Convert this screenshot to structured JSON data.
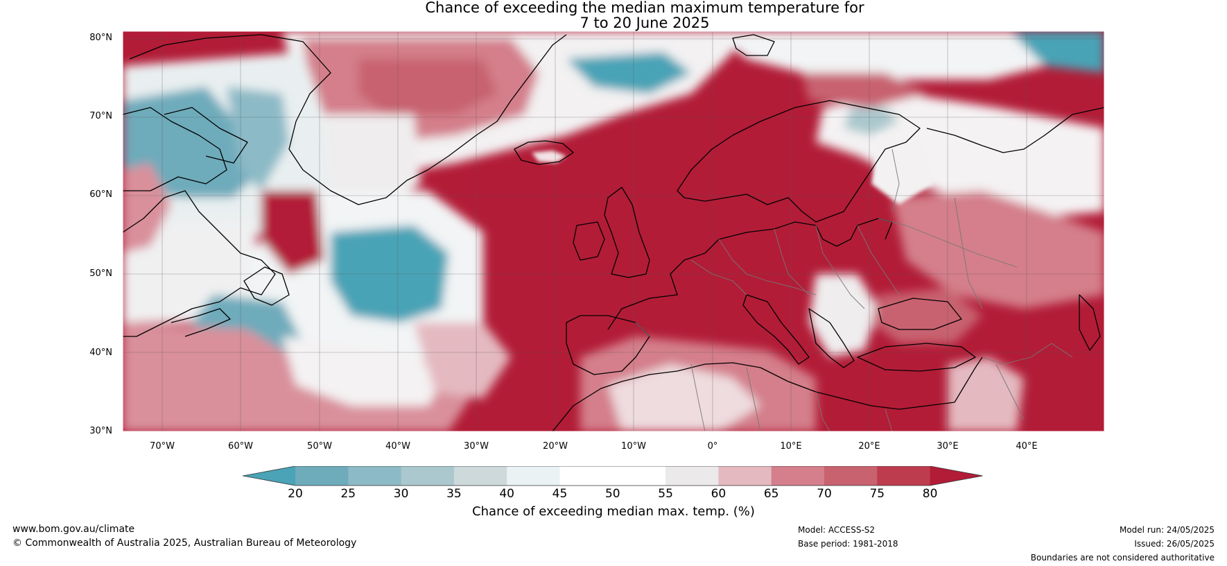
{
  "title": {
    "line1": "Chance of exceeding the median maximum temperature for",
    "line2": "7 to 20 June 2025"
  },
  "map": {
    "extent_lon": [
      -75,
      50
    ],
    "extent_lat": [
      30,
      81
    ],
    "lat_labels": [
      "80°N",
      "70°N",
      "60°N",
      "50°N",
      "40°N",
      "30°N"
    ],
    "lon_labels": [
      "70°W",
      "60°W",
      "50°W",
      "40°W",
      "30°W",
      "20°W",
      "10°W",
      "0°",
      "10°E",
      "20°E",
      "30°E",
      "40°E"
    ],
    "gridlines": true,
    "coastlines": true,
    "country_borders": true
  },
  "colorbar": {
    "ticks": [
      "20",
      "25",
      "30",
      "35",
      "40",
      "45",
      "50",
      "55",
      "60",
      "65",
      "70",
      "75",
      "80"
    ],
    "colors": [
      "#4aa3b6",
      "#6eabbb",
      "#8cbac6",
      "#aac8cd",
      "#cdd9da",
      "#eaf2f4",
      "#ffffff",
      "#ffffff",
      "#ebe9ea",
      "#e4b9c0",
      "#d47f8b",
      "#c8626f",
      "#bd3c4e",
      "#b21c37"
    ],
    "label": "Chance of exceeding median max. temp. (%)"
  },
  "legend_colors": {
    "low": "#4aa3b6",
    "neutral": "#ffffff",
    "high": "#b21c37"
  },
  "footer": {
    "website": "www.bom.gov.au/climate",
    "copyright": "© Commonwealth of Australia 2025, Australian Bureau of Meteorology",
    "model": "Model: ACCESS-S2",
    "base_period": "Base period: 1981-2018",
    "model_run": "Model run: 24/05/2025",
    "issued": "Issued: 26/05/2025",
    "disclaimer": "Boundaries are not considered authoritative"
  }
}
